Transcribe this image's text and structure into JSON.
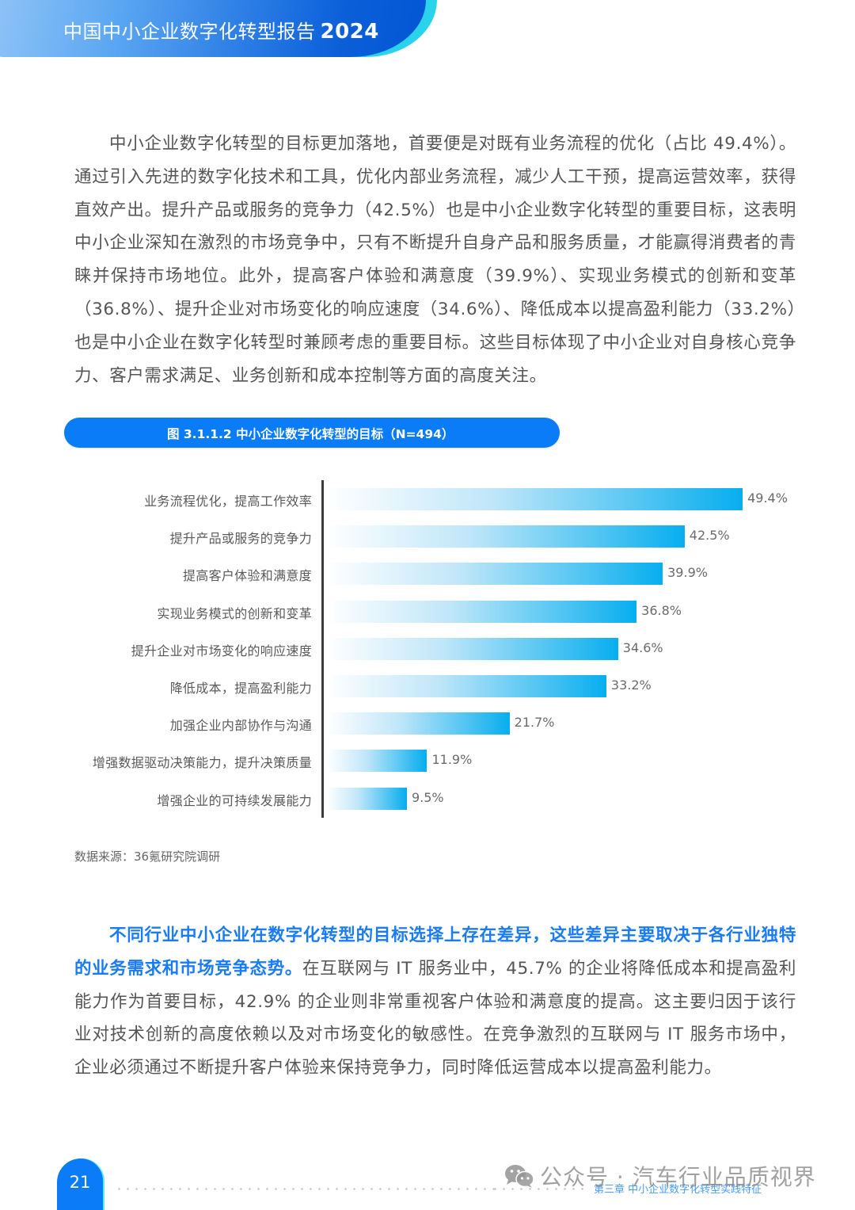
{
  "header": {
    "title": "中国中小企业数字化转型报告",
    "year": "2024"
  },
  "paragraph1": "中小企业数字化转型的目标更加落地，首要便是对既有业务流程的优化（占比 49.4%）。通过引入先进的数字化技术和工具，优化内部业务流程，减少人工干预，提高运营效率，获得直效产出。提升产品或服务的竞争力（42.5%）也是中小企业数字化转型的重要目标，这表明中小企业深知在激烈的市场竞争中，只有不断提升自身产品和服务质量，才能赢得消费者的青睐并保持市场地位。此外，提高客户体验和满意度（39.9%）、实现业务模式的创新和变革（36.8%）、提升企业对市场变化的响应速度（34.6%）、降低成本以提高盈利能力（33.2%）也是中小企业在数字化转型时兼顾考虑的重要目标。这些目标体现了中小企业对自身核心竞争力、客户需求满足、业务创新和成本控制等方面的高度关注。",
  "figure": {
    "title": "图 3.1.1.2 中小企业数字化转型的目标（N=494）",
    "source": "数据来源：36氪研究院调研"
  },
  "chart_data": {
    "type": "bar",
    "orientation": "horizontal",
    "title": "图 3.1.1.2 中小企业数字化转型的目标（N=494）",
    "xlabel": "",
    "ylabel": "",
    "unit": "%",
    "grid": false,
    "legend": null,
    "categories": [
      "业务流程优化，提高工作效率",
      "提升产品或服务的竞争力",
      "提高客户体验和满意度",
      "实现业务模式的创新和变革",
      "提升企业对市场变化的响应速度",
      "降低成本，提高盈利能力",
      "加强企业内部协作与沟通",
      "增强数据驱动决策能力，提升决策质量",
      "增强企业的可持续发展能力"
    ],
    "values": [
      49.4,
      42.5,
      39.9,
      36.8,
      34.6,
      33.2,
      21.7,
      11.9,
      9.5
    ],
    "value_labels": [
      "49.4%",
      "42.5%",
      "39.9%",
      "36.8%",
      "34.6%",
      "33.2%",
      "21.7%",
      "11.9%",
      "9.5%"
    ],
    "bar_color": "#08aeef",
    "source": "数据来源：36氪研究院调研"
  },
  "paragraph2": {
    "highlight": "不同行业中小企业在数字化转型的目标选择上存在差异，这些差异主要取决于各行业独特的业务需求和市场竞争态势。",
    "body": "在互联网与 IT 服务业中，45.7% 的企业将降低成本和提高盈利能力作为首要目标，42.9% 的企业则非常重视客户体验和满意度的提高。这主要归因于该行业对技术创新的高度依赖以及对市场变化的敏感性。在竞争激烈的互联网与 IT 服务市场中，企业必须通过不断提升客户体验来保持竞争力，同时降低运营成本以提高盈利能力。"
  },
  "footer": {
    "page_number": "21",
    "chapter": "第三章 中小企业数字化转型实践特征",
    "watermark": "公众号 · 汽车行业品质视界"
  },
  "colors": {
    "brand_blue": "#0a7cf7",
    "accent_cyan": "#29d3ec",
    "bar_end": "#08aeef",
    "highlight_text": "#1a7cf5"
  }
}
